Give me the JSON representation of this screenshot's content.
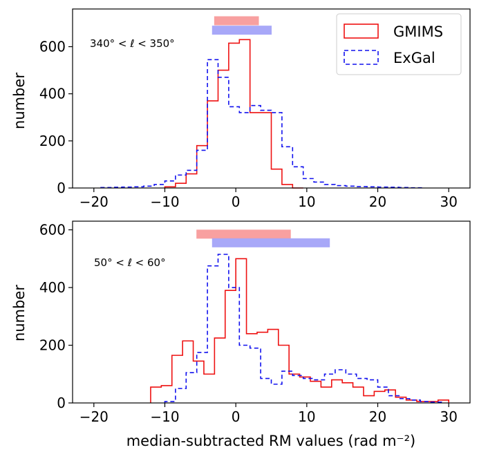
{
  "chart_data": [
    {
      "type": "histogram",
      "panel": "top",
      "annotation": "340° < ℓ < 350°",
      "ylabel": "number",
      "xlabel": "",
      "xlim": [
        -23,
        33
      ],
      "ylim": [
        0,
        760
      ],
      "xticks": [
        -20,
        -10,
        0,
        10,
        20,
        30
      ],
      "xtick_labels": [
        "−20",
        "−10",
        "0",
        "10",
        "20",
        "30"
      ],
      "yticks": [
        0,
        200,
        400,
        600
      ],
      "ytick_labels": [
        "0",
        "200",
        "400",
        "600"
      ],
      "legend": {
        "placement": "top-right",
        "entries": [
          {
            "label": "GMIMS",
            "color": "#ee1111",
            "style": "solid"
          },
          {
            "label": "ExGal",
            "color": "#1111ee",
            "style": "dashed"
          }
        ]
      },
      "range_bars": [
        {
          "name": "GMIMS",
          "color": "#f8a0a0",
          "x0": -3.0,
          "x1": 3.2,
          "y": 710
        },
        {
          "name": "ExGal",
          "color": "#a8a8f8",
          "x0": -3.3,
          "x1": 5.0,
          "y": 670
        }
      ],
      "series": [
        {
          "name": "GMIMS",
          "color": "#ee1111",
          "dash": "none",
          "edges": [
            -10,
            -8.5,
            -7,
            -5.5,
            -4,
            -2.5,
            -1,
            0.5,
            2,
            3.5,
            5,
            6.5,
            8,
            9.5
          ],
          "counts": [
            5,
            20,
            60,
            180,
            370,
            500,
            615,
            630,
            320,
            320,
            80,
            15,
            0
          ]
        },
        {
          "name": "ExGal",
          "color": "#1111ee",
          "dash": "6,4",
          "edges": [
            -19,
            -17.5,
            -16,
            -14.5,
            -13,
            -11.5,
            -10,
            -8.5,
            -7,
            -5.5,
            -4,
            -2.5,
            -1,
            0.5,
            2,
            3.5,
            5,
            6.5,
            8,
            9.5,
            11,
            12.5,
            14,
            15.5,
            17,
            18.5,
            20,
            21.5,
            23,
            24.5,
            26.5
          ],
          "counts": [
            2,
            3,
            4,
            5,
            8,
            15,
            30,
            55,
            75,
            160,
            545,
            470,
            345,
            320,
            350,
            330,
            320,
            175,
            90,
            40,
            25,
            15,
            10,
            8,
            6,
            5,
            4,
            3,
            2,
            1
          ]
        }
      ]
    },
    {
      "type": "histogram",
      "panel": "bottom",
      "annotation": "50° < ℓ <  60°",
      "ylabel": "number",
      "xlabel": "median-subtracted RM values (rad m⁻²)",
      "xlim": [
        -23,
        33
      ],
      "ylim": [
        0,
        630
      ],
      "xticks": [
        -20,
        -10,
        0,
        10,
        20,
        30
      ],
      "xtick_labels": [
        "−20",
        "−10",
        "0",
        "10",
        "20",
        "30"
      ],
      "yticks": [
        0,
        200,
        400,
        600
      ],
      "ytick_labels": [
        "0",
        "200",
        "400",
        "600"
      ],
      "range_bars": [
        {
          "name": "GMIMS",
          "color": "#f8a0a0",
          "x0": -5.5,
          "x1": 7.7,
          "y": 585
        },
        {
          "name": "ExGal",
          "color": "#a8a8f8",
          "x0": -3.3,
          "x1": 13.2,
          "y": 555
        }
      ],
      "series": [
        {
          "name": "GMIMS",
          "color": "#ee1111",
          "dash": "none",
          "edges": [
            -12,
            -10.5,
            -9,
            -7.5,
            -6,
            -4.5,
            -3,
            -1.5,
            0,
            1.5,
            3,
            4.5,
            6,
            7.5,
            9,
            10.5,
            12,
            13.5,
            15,
            16.5,
            18,
            19.5,
            21,
            22.5,
            24,
            25.5,
            27,
            28.5,
            30
          ],
          "counts": [
            55,
            60,
            165,
            215,
            145,
            100,
            225,
            390,
            500,
            240,
            245,
            255,
            200,
            100,
            90,
            75,
            55,
            80,
            70,
            55,
            25,
            40,
            45,
            20,
            10,
            5,
            5,
            10
          ]
        },
        {
          "name": "ExGal",
          "color": "#1111ee",
          "dash": "6,4",
          "edges": [
            -10,
            -8.5,
            -7,
            -5.5,
            -4,
            -2.5,
            -1,
            0.5,
            2,
            3.5,
            5,
            6.5,
            8,
            9.5,
            11,
            12.5,
            14,
            15.5,
            17,
            18.5,
            20,
            21.5,
            23,
            24.5,
            26,
            27.5,
            29
          ],
          "counts": [
            5,
            50,
            105,
            175,
            475,
            515,
            400,
            200,
            190,
            85,
            65,
            110,
            95,
            85,
            80,
            100,
            115,
            100,
            85,
            80,
            55,
            25,
            15,
            10,
            5,
            3
          ]
        }
      ]
    }
  ]
}
